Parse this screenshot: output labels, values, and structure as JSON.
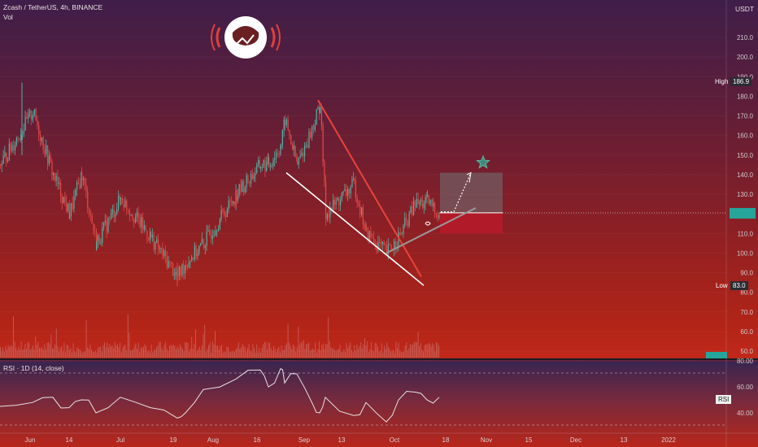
{
  "header": {
    "symbol": "Zcash / TetherUS, 4h, BINANCE",
    "volume_label": "Vol",
    "currency": "USDT"
  },
  "price_axis": {
    "ticks": [
      "210.0",
      "200.0",
      "190.0",
      "180.0",
      "170.0",
      "160.0",
      "150.0",
      "140.0",
      "130.0",
      "120.0",
      "110.0",
      "100.0",
      "90.0",
      "80.0",
      "70.0",
      "60.0",
      "50.0"
    ],
    "high_label": "High",
    "high_value": "186.9",
    "low_label": "Low",
    "low_value": "83.0"
  },
  "rsi": {
    "label": "RSI · 1D (14, close)",
    "ticks": [
      "80.00",
      "60.00",
      "40.00"
    ],
    "tag": "RSI"
  },
  "time_axis": [
    "Jun",
    "14",
    "Jul",
    "19",
    "Aug",
    "16",
    "Sep",
    "13",
    "Oct",
    "18",
    "Nov",
    "15",
    "Dec",
    "13",
    "2022"
  ],
  "colors": {
    "up": "#4fb3a3",
    "down": "#e04a4a",
    "wedge_upper": "#e8433c",
    "wedge_lower": "#ffffff",
    "support": "#9a9a9a",
    "target_box": "#6f6a6e",
    "stop_box": "#c2182b"
  },
  "icons": [
    "astronaut-logo-icon",
    "star-icon"
  ],
  "chart_data": {
    "type": "candlestick",
    "title": "Zcash / TetherUS, 4h, BINANCE",
    "price_ylim": [
      46,
      226
    ],
    "rsi_ylim": [
      20,
      85
    ],
    "close_path": {
      "x": [
        "May 28",
        "Jun 3",
        "Jun 10",
        "Jun 14",
        "Jun 20",
        "Jun 28",
        "Jul 5",
        "Jul 12",
        "Jul 19",
        "Jul 21",
        "Jul 28",
        "Aug 3",
        "Aug 10",
        "Aug 16",
        "Aug 22",
        "Aug 26",
        "Aug 30",
        "Sep 5",
        "Sep 7",
        "Sep 8",
        "Sep 13",
        "Sep 17",
        "Sep 21",
        "Sep 25",
        "Sep 29",
        "Oct 3",
        "Oct 8"
      ],
      "close": [
        145,
        172,
        140,
        120,
        140,
        105,
        128,
        108,
        88,
        95,
        105,
        130,
        145,
        145,
        155,
        168,
        145,
        165,
        176,
        120,
        135,
        110,
        100,
        108,
        125,
        126,
        120
      ]
    },
    "rsi_values": [
      45,
      48,
      52,
      44,
      50,
      40,
      52,
      44,
      36,
      40,
      58,
      66,
      73,
      60,
      74,
      63,
      70,
      46,
      40,
      52,
      38,
      48,
      33,
      50,
      56,
      50,
      52
    ],
    "high": 186.9,
    "low": 83.0,
    "last_price": 120.5,
    "target_zone": [
      120.5,
      141
    ],
    "stop_zone": [
      110,
      120.5
    ]
  }
}
